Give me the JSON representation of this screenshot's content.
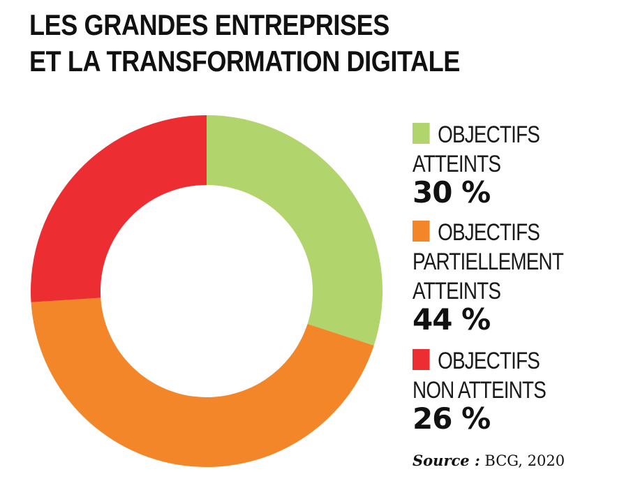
{
  "title": {
    "line1": "LES GRANDES ENTREPRISES",
    "line2": "ET LA TRANSFORMATION DIGITALE"
  },
  "chart_data": {
    "type": "pie",
    "subtype": "donut",
    "title": "LES GRANDES ENTREPRISES ET LA TRANSFORMATION DIGITALE",
    "unit": "%",
    "legend_position": "right",
    "slices": [
      {
        "label_lines": [
          "OBJECTIFS",
          "ATTEINTS"
        ],
        "value": 30,
        "value_text": "30 %",
        "color": "#b1d46c"
      },
      {
        "label_lines": [
          "OBJECTIFS",
          "PARTIELLEMENT",
          "ATTEINTS"
        ],
        "value": 44,
        "value_text": "44 %",
        "color": "#f28629"
      },
      {
        "label_lines": [
          "OBJECTIFS",
          "NON ATTEINTS"
        ],
        "value": 26,
        "value_text": "26 %",
        "color": "#ec2e33"
      }
    ],
    "source_label": "Source :",
    "source_value": " BCG, 2020"
  }
}
